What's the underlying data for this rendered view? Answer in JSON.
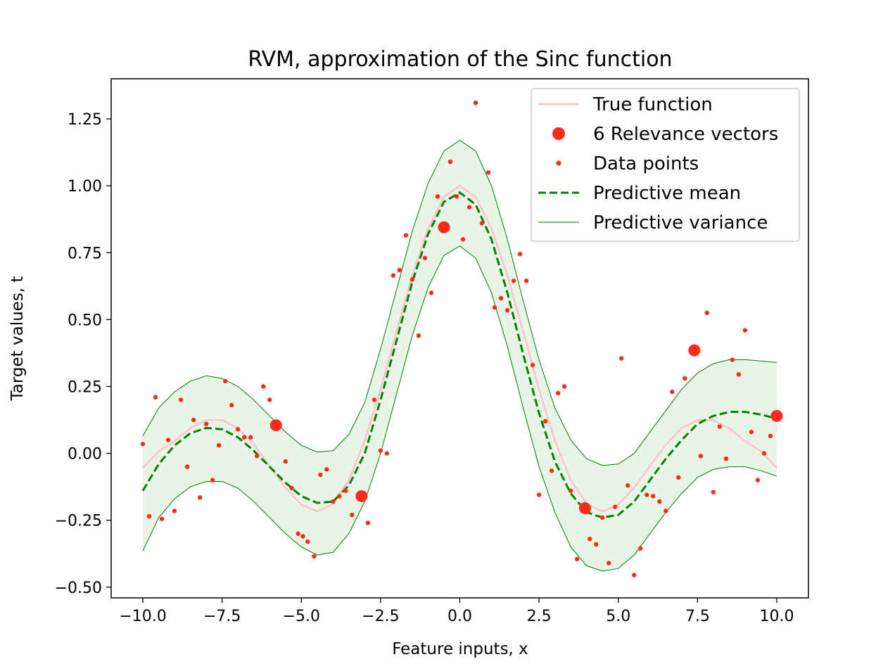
{
  "chart_data": {
    "type": "line",
    "title": "RVM, approximation of the Sinc function",
    "xlabel": "Feature inputs, x",
    "ylabel": "Target values, t",
    "xlim": [
      -11.0,
      11.0
    ],
    "ylim": [
      -0.54,
      1.4
    ],
    "xticks": [
      -10.0,
      -7.5,
      -5.0,
      -2.5,
      0.0,
      2.5,
      5.0,
      7.5,
      10.0
    ],
    "xtick_labels": [
      "−10.0",
      "−7.5",
      "−5.0",
      "−2.5",
      "0.0",
      "2.5",
      "5.0",
      "7.5",
      "10.0"
    ],
    "yticks": [
      -0.5,
      -0.25,
      0.0,
      0.25,
      0.5,
      0.75,
      1.0,
      1.25
    ],
    "ytick_labels": [
      "−0.50",
      "−0.25",
      "0.00",
      "0.25",
      "0.50",
      "0.75",
      "1.00",
      "1.25"
    ],
    "grid": false,
    "legend_position": "top-right",
    "series": [
      {
        "name": "True function",
        "kind": "line",
        "color": "#ffc0cb",
        "x": [
          -10,
          -9.5,
          -9,
          -8.5,
          -8,
          -7.5,
          -7,
          -6.5,
          -6,
          -5.5,
          -5,
          -4.5,
          -4,
          -3.5,
          -3,
          -2.5,
          -2,
          -1.5,
          -1,
          -0.5,
          0,
          0.5,
          1,
          1.5,
          2,
          2.5,
          3,
          3.5,
          4,
          4.5,
          5,
          5.5,
          6,
          6.5,
          7,
          7.5,
          8,
          8.5,
          9,
          9.5,
          10
        ],
        "y": [
          -0.054,
          0.008,
          0.046,
          0.094,
          0.124,
          0.125,
          0.094,
          0.033,
          -0.047,
          -0.128,
          -0.192,
          -0.217,
          -0.189,
          -0.1,
          0.047,
          0.239,
          0.455,
          0.665,
          0.841,
          0.959,
          1.0,
          0.959,
          0.841,
          0.665,
          0.455,
          0.239,
          0.047,
          -0.1,
          -0.189,
          -0.217,
          -0.192,
          -0.128,
          -0.047,
          0.033,
          0.094,
          0.125,
          0.124,
          0.094,
          0.046,
          0.008,
          -0.054
        ]
      },
      {
        "name": "Predictive mean",
        "kind": "dashed-line",
        "color": "#008000",
        "x": [
          -10,
          -9.5,
          -9,
          -8.5,
          -8,
          -7.5,
          -7,
          -6.5,
          -6,
          -5.5,
          -5,
          -4.5,
          -4,
          -3.5,
          -3,
          -2.5,
          -2,
          -1.5,
          -1,
          -0.5,
          0,
          0.5,
          1,
          1.5,
          2,
          2.5,
          3,
          3.5,
          4,
          4.5,
          5,
          5.5,
          6,
          6.5,
          7,
          7.5,
          8,
          8.5,
          9,
          9.5,
          10
        ],
        "y": [
          -0.14,
          -0.04,
          0.03,
          0.075,
          0.095,
          0.09,
          0.06,
          0.01,
          -0.05,
          -0.11,
          -0.16,
          -0.185,
          -0.18,
          -0.12,
          0.0,
          0.2,
          0.42,
          0.64,
          0.82,
          0.94,
          0.975,
          0.93,
          0.8,
          0.6,
          0.37,
          0.15,
          -0.03,
          -0.15,
          -0.22,
          -0.24,
          -0.23,
          -0.18,
          -0.1,
          -0.02,
          0.05,
          0.11,
          0.14,
          0.155,
          0.155,
          0.145,
          0.13
        ]
      },
      {
        "name": "Predictive variance",
        "kind": "band",
        "color": "#008000",
        "x": [
          -10,
          -9.5,
          -9,
          -8.5,
          -8,
          -7.5,
          -7,
          -6.5,
          -6,
          -5.5,
          -5,
          -4.5,
          -4,
          -3.5,
          -3,
          -2.5,
          -2,
          -1.5,
          -1,
          -0.5,
          0,
          0.5,
          1,
          1.5,
          2,
          2.5,
          3,
          3.5,
          4,
          4.5,
          5,
          5.5,
          6,
          6.5,
          7,
          7.5,
          8,
          8.5,
          9,
          9.5,
          10
        ],
        "upper": [
          0.065,
          0.17,
          0.23,
          0.27,
          0.29,
          0.28,
          0.25,
          0.2,
          0.14,
          0.08,
          0.03,
          0.005,
          0.01,
          0.07,
          0.19,
          0.39,
          0.61,
          0.83,
          1.01,
          1.13,
          1.17,
          1.13,
          1.0,
          0.8,
          0.57,
          0.35,
          0.17,
          0.05,
          -0.02,
          -0.045,
          -0.04,
          0.0,
          0.08,
          0.16,
          0.24,
          0.3,
          0.335,
          0.35,
          0.35,
          0.345,
          0.34
        ],
        "lower": [
          -0.365,
          -0.24,
          -0.17,
          -0.125,
          -0.105,
          -0.105,
          -0.13,
          -0.18,
          -0.24,
          -0.3,
          -0.35,
          -0.38,
          -0.37,
          -0.3,
          -0.18,
          0.0,
          0.22,
          0.44,
          0.62,
          0.74,
          0.775,
          0.73,
          0.6,
          0.4,
          0.17,
          -0.05,
          -0.22,
          -0.35,
          -0.42,
          -0.44,
          -0.43,
          -0.38,
          -0.3,
          -0.22,
          -0.15,
          -0.09,
          -0.06,
          -0.05,
          -0.05,
          -0.065,
          -0.085
        ]
      },
      {
        "name": "Data points",
        "kind": "scatter",
        "color": "#ff2a1a",
        "points": [
          [
            -10.0,
            0.035
          ],
          [
            -9.8,
            -0.235
          ],
          [
            -9.6,
            0.21
          ],
          [
            -9.4,
            -0.245
          ],
          [
            -9.2,
            0.05
          ],
          [
            -9.0,
            -0.215
          ],
          [
            -8.8,
            0.2
          ],
          [
            -8.6,
            -0.05
          ],
          [
            -8.4,
            0.125
          ],
          [
            -8.2,
            -0.165
          ],
          [
            -8.0,
            0.11
          ],
          [
            -7.8,
            -0.1
          ],
          [
            -7.6,
            0.03
          ],
          [
            -7.4,
            0.27
          ],
          [
            -7.2,
            0.18
          ],
          [
            -7.0,
            0.09
          ],
          [
            -6.8,
            0.06
          ],
          [
            -6.6,
            0.06
          ],
          [
            -6.4,
            -0.01
          ],
          [
            -6.2,
            0.25
          ],
          [
            -6.0,
            0.2
          ],
          [
            -5.5,
            -0.03
          ],
          [
            -5.3,
            -0.13
          ],
          [
            -5.1,
            -0.3
          ],
          [
            -4.95,
            -0.31
          ],
          [
            -4.8,
            -0.33
          ],
          [
            -4.6,
            -0.385
          ],
          [
            -4.4,
            -0.08
          ],
          [
            -4.2,
            -0.06
          ],
          [
            -4.0,
            -0.18
          ],
          [
            -3.8,
            -0.16
          ],
          [
            -3.6,
            -0.14
          ],
          [
            -3.4,
            -0.23
          ],
          [
            -2.9,
            -0.26
          ],
          [
            -2.7,
            0.2
          ],
          [
            -2.5,
            0.01
          ],
          [
            -2.3,
            0.0
          ],
          [
            -2.1,
            0.665
          ],
          [
            -1.9,
            0.685
          ],
          [
            -1.7,
            0.815
          ],
          [
            -1.5,
            0.65
          ],
          [
            -1.3,
            0.44
          ],
          [
            -1.1,
            0.73
          ],
          [
            -0.9,
            0.6
          ],
          [
            -0.7,
            0.96
          ],
          [
            -0.3,
            1.09
          ],
          [
            -0.1,
            0.96
          ],
          [
            0.1,
            0.8
          ],
          [
            0.3,
            0.92
          ],
          [
            0.5,
            1.31
          ],
          [
            0.7,
            0.86
          ],
          [
            0.9,
            1.05
          ],
          [
            1.1,
            0.545
          ],
          [
            1.3,
            0.58
          ],
          [
            1.5,
            0.535
          ],
          [
            1.7,
            0.645
          ],
          [
            1.9,
            0.745
          ],
          [
            2.1,
            0.645
          ],
          [
            2.3,
            0.33
          ],
          [
            2.5,
            -0.155
          ],
          [
            2.7,
            0.12
          ],
          [
            2.9,
            -0.065
          ],
          [
            3.1,
            0.225
          ],
          [
            3.3,
            0.25
          ],
          [
            3.5,
            -0.14
          ],
          [
            3.7,
            -0.395
          ],
          [
            4.1,
            -0.32
          ],
          [
            4.3,
            -0.34
          ],
          [
            4.5,
            -0.24
          ],
          [
            4.7,
            -0.41
          ],
          [
            4.9,
            -0.2
          ],
          [
            5.1,
            0.355
          ],
          [
            5.3,
            -0.12
          ],
          [
            5.5,
            -0.455
          ],
          [
            5.7,
            -0.355
          ],
          [
            5.9,
            -0.155
          ],
          [
            6.1,
            -0.16
          ],
          [
            6.3,
            -0.18
          ],
          [
            6.5,
            -0.215
          ],
          [
            6.7,
            0.23
          ],
          [
            6.9,
            -0.09
          ],
          [
            7.1,
            0.28
          ],
          [
            7.6,
            -0.01
          ],
          [
            7.8,
            0.525
          ],
          [
            8.0,
            -0.145
          ],
          [
            8.2,
            0.1
          ],
          [
            8.4,
            -0.02
          ],
          [
            8.6,
            0.35
          ],
          [
            8.8,
            0.295
          ],
          [
            9.0,
            0.46
          ],
          [
            9.2,
            0.08
          ],
          [
            9.4,
            -0.1
          ],
          [
            9.6,
            0.0
          ],
          [
            9.8,
            0.065
          ]
        ]
      },
      {
        "name": "6 Relevance vectors",
        "kind": "scatter-large",
        "color": "#ff2a1a",
        "points": [
          [
            -5.8,
            0.105
          ],
          [
            -3.1,
            -0.16
          ],
          [
            -0.5,
            0.845
          ],
          [
            3.95,
            -0.205
          ],
          [
            7.4,
            0.385
          ],
          [
            10.0,
            0.14
          ]
        ]
      }
    ],
    "legend": [
      {
        "label": "True function",
        "marker": "line",
        "color": "#ffc0cb"
      },
      {
        "label": "6 Relevance vectors",
        "marker": "big-dot",
        "color": "#ff2a1a"
      },
      {
        "label": "Data points",
        "marker": "small-dot",
        "color": "#ff2a1a"
      },
      {
        "label": "Predictive mean",
        "marker": "dashed-line",
        "color": "#008000"
      },
      {
        "label": "Predictive variance",
        "marker": "thin-line",
        "color": "#008000"
      }
    ]
  }
}
